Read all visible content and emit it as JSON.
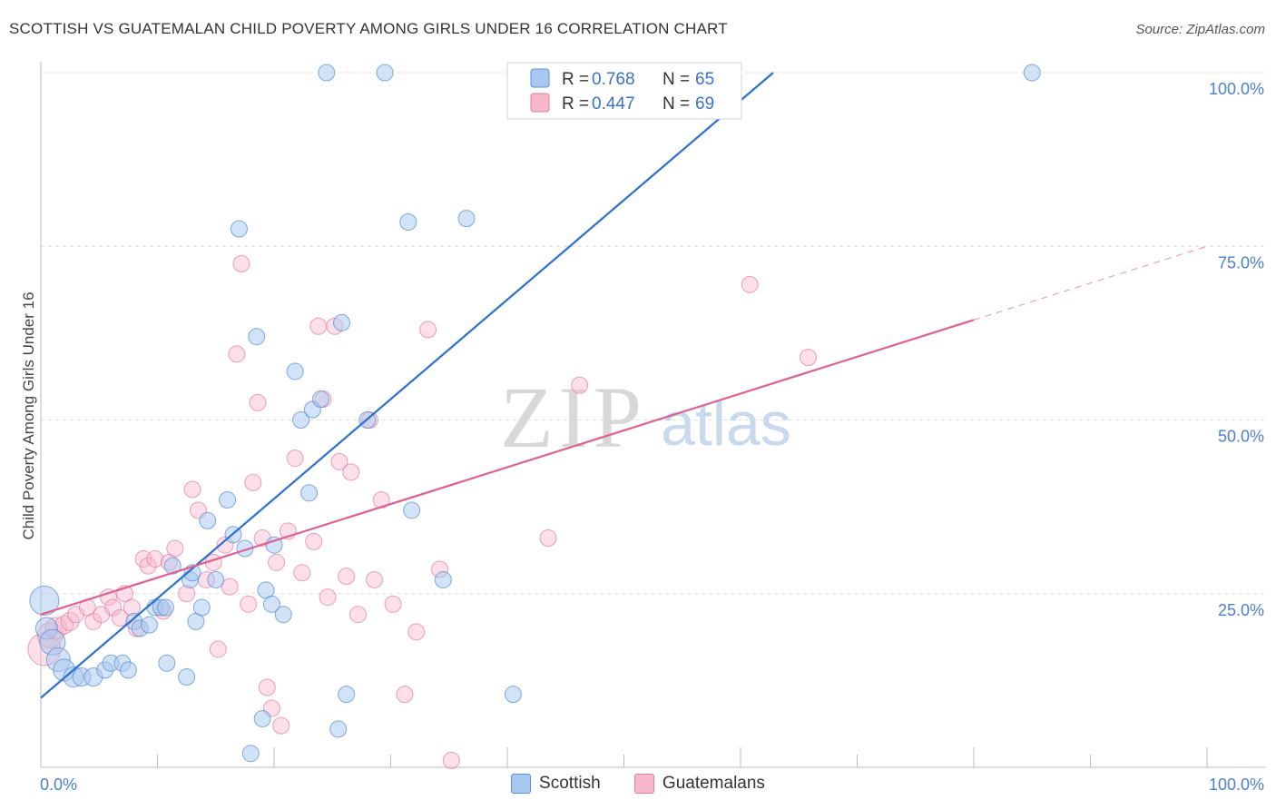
{
  "header": {
    "title": "SCOTTISH VS GUATEMALAN CHILD POVERTY AMONG GIRLS UNDER 16 CORRELATION CHART",
    "source": "Source: ZipAtlas.com"
  },
  "watermark": {
    "zip": "ZIP",
    "atlas": "atlas"
  },
  "colors": {
    "scottish_fill": "#a8c8f0",
    "scottish_stroke": "#5b8fd4",
    "scottish_line": "#2b6fcf",
    "guatemalan_fill": "#f8b8cb",
    "guatemalan_stroke": "#e27a9c",
    "guatemalan_line": "#e06090",
    "tick_label": "#4a7fcf",
    "grid": "#dddddd"
  },
  "legend": {
    "scottish": {
      "r_label": "R =",
      "r_value": "0.768",
      "n_label": "N =",
      "n_value": "65"
    },
    "guatemalan": {
      "r_label": "R =",
      "r_value": "0.447",
      "n_label": "N =",
      "n_value": "69"
    }
  },
  "chart_data": {
    "type": "scatter",
    "title": "SCOTTISH VS GUATEMALAN CHILD POVERTY AMONG GIRLS UNDER 16 CORRELATION CHART",
    "xlabel": "",
    "ylabel": "Child Poverty Among Girls Under 16",
    "xlim": [
      0,
      100
    ],
    "ylim": [
      0,
      100
    ],
    "x_tick_labels": [
      "0.0%",
      "100.0%"
    ],
    "y_ticks": [
      {
        "value": 25,
        "label": "25.0%"
      },
      {
        "value": 50,
        "label": "50.0%"
      },
      {
        "value": 75,
        "label": "75.0%"
      },
      {
        "value": 100,
        "label": "100.0%"
      }
    ],
    "grid": true,
    "legend_position": "top-center",
    "series": [
      {
        "name": "Scottish",
        "r": 0.768,
        "n": 65,
        "trend": {
          "x0": 0,
          "y0": 10,
          "x1": 62.8,
          "y1": 100,
          "dashed_to": 62.8
        },
        "points": [
          [
            0.3,
            24.0,
            16
          ],
          [
            0.5,
            20.0,
            12
          ],
          [
            1,
            18.0,
            14
          ],
          [
            1.5,
            15.5,
            13
          ],
          [
            2,
            14.0,
            12
          ],
          [
            2.8,
            13.0,
            11
          ],
          [
            3.5,
            13.0,
            10
          ],
          [
            4.5,
            13.0,
            10
          ],
          [
            5.5,
            14.0,
            9
          ],
          [
            6,
            15.0,
            9
          ],
          [
            7,
            15.0,
            9
          ],
          [
            7.5,
            14.0,
            9
          ],
          [
            8,
            21.0,
            9
          ],
          [
            8.5,
            20.0,
            9
          ],
          [
            9.3,
            20.5,
            9
          ],
          [
            9.8,
            23.0,
            9
          ],
          [
            10.3,
            23.0,
            9
          ],
          [
            10.7,
            23.0,
            9
          ],
          [
            10.8,
            15.0,
            9
          ],
          [
            11.3,
            29.0,
            9
          ],
          [
            12.5,
            13.0,
            9
          ],
          [
            12.8,
            27.0,
            9
          ],
          [
            13,
            28.0,
            9
          ],
          [
            13.3,
            21.0,
            9
          ],
          [
            13.8,
            23.0,
            9
          ],
          [
            14.3,
            35.5,
            9
          ],
          [
            15,
            27.0,
            9
          ],
          [
            16,
            38.5,
            9
          ],
          [
            16.5,
            33.5,
            9
          ],
          [
            17,
            77.5,
            9
          ],
          [
            17.5,
            31.5,
            9
          ],
          [
            18,
            2.0,
            9
          ],
          [
            18.5,
            62.0,
            9
          ],
          [
            19,
            7.0,
            9
          ],
          [
            19.3,
            25.5,
            9
          ],
          [
            19.8,
            23.5,
            9
          ],
          [
            20,
            32.0,
            9
          ],
          [
            20.8,
            22.0,
            9
          ],
          [
            21.8,
            57.0,
            9
          ],
          [
            22.3,
            50.0,
            9
          ],
          [
            23,
            39.5,
            9
          ],
          [
            23.3,
            51.5,
            9
          ],
          [
            24,
            53.0,
            9
          ],
          [
            24.5,
            100.0,
            9
          ],
          [
            25.5,
            5.5,
            9
          ],
          [
            25.8,
            64.0,
            9
          ],
          [
            26.2,
            10.5,
            9
          ],
          [
            28,
            50.0,
            9
          ],
          [
            29.5,
            100.0,
            9
          ],
          [
            31.5,
            78.5,
            9
          ],
          [
            31.8,
            37.0,
            9
          ],
          [
            34.5,
            27.0,
            9
          ],
          [
            36.5,
            79.0,
            9
          ],
          [
            40.5,
            10.5,
            9
          ],
          [
            45,
            100.0,
            9
          ],
          [
            46.5,
            100.0,
            9
          ],
          [
            56.5,
            100.0,
            9
          ],
          [
            58,
            100.0,
            9
          ],
          [
            85,
            100.0,
            9
          ]
        ]
      },
      {
        "name": "Guatemalans",
        "r": 0.447,
        "n": 69,
        "trend": {
          "x0": 0,
          "y0": 22,
          "x1": 100,
          "y1": 75,
          "solid_to": 80
        },
        "points": [
          [
            0.3,
            17.0,
            18
          ],
          [
            0.8,
            19.0,
            14
          ],
          [
            1.3,
            20.0,
            12
          ],
          [
            2,
            20.5,
            10
          ],
          [
            2.5,
            21.0,
            10
          ],
          [
            3,
            22.0,
            9
          ],
          [
            4,
            23.0,
            9
          ],
          [
            4.5,
            21.0,
            9
          ],
          [
            5.2,
            22.0,
            9
          ],
          [
            5.8,
            24.5,
            9
          ],
          [
            6.2,
            23.0,
            9
          ],
          [
            6.8,
            21.5,
            9
          ],
          [
            7.2,
            25.0,
            9
          ],
          [
            7.8,
            23.0,
            9
          ],
          [
            8.2,
            20.0,
            9
          ],
          [
            8.8,
            30.0,
            9
          ],
          [
            9.2,
            29.0,
            9
          ],
          [
            9.8,
            30.0,
            9
          ],
          [
            10.5,
            22.5,
            9
          ],
          [
            11,
            29.5,
            9
          ],
          [
            11.5,
            31.5,
            9
          ],
          [
            12.5,
            25.0,
            9
          ],
          [
            13,
            40.0,
            9
          ],
          [
            13.5,
            37.0,
            9
          ],
          [
            14.2,
            27.0,
            9
          ],
          [
            14.8,
            29.5,
            9
          ],
          [
            15.2,
            17.0,
            9
          ],
          [
            15.8,
            32.0,
            9
          ],
          [
            16.2,
            26.0,
            9
          ],
          [
            16.8,
            59.5,
            9
          ],
          [
            17.2,
            72.5,
            9
          ],
          [
            17.8,
            23.5,
            9
          ],
          [
            18.2,
            41.0,
            9
          ],
          [
            18.6,
            52.5,
            9
          ],
          [
            19,
            33.0,
            9
          ],
          [
            19.4,
            11.5,
            9
          ],
          [
            19.8,
            8.5,
            9
          ],
          [
            20.2,
            29.5,
            9
          ],
          [
            20.6,
            6.0,
            9
          ],
          [
            21.2,
            34.0,
            9
          ],
          [
            21.8,
            44.5,
            9
          ],
          [
            22.4,
            28.0,
            9
          ],
          [
            23.4,
            32.5,
            9
          ],
          [
            23.8,
            63.5,
            9
          ],
          [
            24.2,
            53.0,
            9
          ],
          [
            24.6,
            24.5,
            9
          ],
          [
            25.2,
            63.5,
            9
          ],
          [
            25.6,
            44.0,
            9
          ],
          [
            26.2,
            27.5,
            9
          ],
          [
            26.6,
            42.5,
            9
          ],
          [
            27.2,
            22.0,
            9
          ],
          [
            28.2,
            50.0,
            9
          ],
          [
            28.6,
            27.0,
            9
          ],
          [
            29.2,
            38.5,
            9
          ],
          [
            30.2,
            23.5,
            9
          ],
          [
            31.2,
            10.5,
            9
          ],
          [
            32.2,
            19.5,
            9
          ],
          [
            33.2,
            63.0,
            9
          ],
          [
            34.2,
            28.5,
            9
          ],
          [
            35.2,
            1.0,
            9
          ],
          [
            43.5,
            33.0,
            9
          ],
          [
            46.2,
            55.0,
            9
          ],
          [
            60.8,
            69.5,
            9
          ],
          [
            65.8,
            59.0,
            9
          ]
        ]
      }
    ]
  },
  "bottom_legend": {
    "scottish": "Scottish",
    "guatemalans": "Guatemalans"
  }
}
